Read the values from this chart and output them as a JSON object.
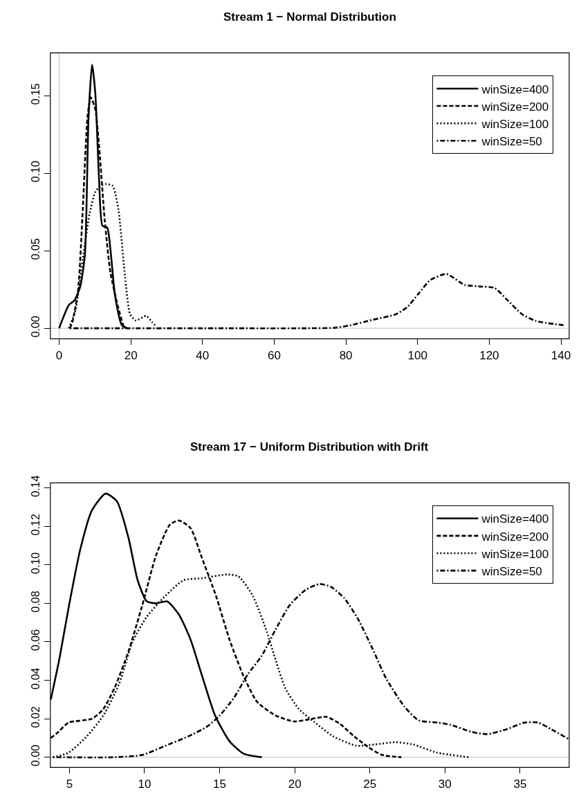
{
  "chart_data": [
    {
      "type": "line",
      "title": "Stream 1 − Normal Distribution",
      "xlim": [
        -2.45,
        142.3
      ],
      "xticks": [
        0,
        20,
        40,
        60,
        80,
        100,
        120,
        140
      ],
      "ylim": [
        -0.0068,
        0.1776
      ],
      "yticks": [
        {
          "value": 0,
          "label": "0.00"
        },
        {
          "value": 0.05,
          "label": "0.05"
        },
        {
          "value": 0.1,
          "label": "0.10"
        },
        {
          "value": 0.15,
          "label": "0.15"
        }
      ],
      "grid": false,
      "legend": "top right",
      "ref_lines": [
        {
          "axis": "y",
          "value": 0,
          "color": "#bebebe"
        },
        {
          "axis": "x",
          "value": 0,
          "color": "#bebebe"
        }
      ],
      "series": [
        {
          "name": "winSize=400",
          "color": "#000000",
          "line_style": "solid",
          "x": [
            0,
            2.7,
            4.3,
            5.9,
            7.2,
            8.2,
            9.2,
            10.1,
            11.1,
            12.1,
            13.4,
            14.3,
            15.6,
            17.5,
            19
          ],
          "values": [
            0,
            0.015,
            0.018,
            0.027,
            0.048,
            0.136,
            0.17,
            0.151,
            0.098,
            0.066,
            0.065,
            0.051,
            0.021,
            0.002,
            0
          ]
        },
        {
          "name": "winSize=200",
          "color": "#000000",
          "line_style": "dashed",
          "x": [
            3,
            3.7,
            5.3,
            6.6,
            7.9,
            8.8,
            10.1,
            11.4,
            12.7,
            14.3,
            16.3,
            17.9,
            18.5
          ],
          "values": [
            0,
            0.004,
            0.025,
            0.077,
            0.136,
            0.149,
            0.141,
            0.11,
            0.07,
            0.036,
            0.015,
            0.002,
            0
          ]
        },
        {
          "name": "winSize=100",
          "color": "#000000",
          "line_style": "dotted",
          "x": [
            2.7,
            4.6,
            6.6,
            8.5,
            10.1,
            11.7,
            13.0,
            14.9,
            16.5,
            18.4,
            19.8,
            21.4,
            24.3,
            25.9,
            27.2
          ],
          "values": [
            0,
            0.012,
            0.045,
            0.074,
            0.088,
            0.092,
            0.093,
            0.092,
            0.077,
            0.033,
            0.009,
            0.005,
            0.008,
            0.004,
            0.001
          ]
        },
        {
          "name": "winSize=50",
          "color": "#000000",
          "line_style": "dashdot",
          "x": [
            3,
            40,
            68.3,
            76.6,
            81.1,
            87.5,
            93.9,
            97.1,
            100.3,
            103.5,
            108,
            113.1,
            117,
            121.5,
            124.7,
            129.2,
            133,
            140.7
          ],
          "values": [
            0,
            0,
            0,
            0.0003,
            0.0018,
            0.0055,
            0.009,
            0.0136,
            0.0224,
            0.031,
            0.035,
            0.028,
            0.027,
            0.026,
            0.019,
            0.009,
            0.0047,
            0.002
          ]
        }
      ]
    },
    {
      "type": "line",
      "title": "Stream 17 − Uniform Distribution with Drift",
      "xlim": [
        3.73,
        38.27
      ],
      "xticks": [
        5,
        10,
        15,
        20,
        25,
        30,
        35
      ],
      "ylim": [
        -0.0053,
        0.1426
      ],
      "yticks": [
        {
          "value": 0,
          "label": "0.00"
        },
        {
          "value": 0.02,
          "label": "0.02"
        },
        {
          "value": 0.04,
          "label": "0.04"
        },
        {
          "value": 0.06,
          "label": "0.06"
        },
        {
          "value": 0.08,
          "label": "0.08"
        },
        {
          "value": 0.1,
          "label": "0.10"
        },
        {
          "value": 0.12,
          "label": "0.12"
        },
        {
          "value": 0.14,
          "label": "0.14"
        }
      ],
      "grid": false,
      "legend": "top right",
      "ref_lines": [
        {
          "axis": "y",
          "value": 0,
          "color": "#bebebe"
        }
      ],
      "series": [
        {
          "name": "winSize=400",
          "color": "#000000",
          "line_style": "solid",
          "x": [
            3.76,
            4.34,
            4.95,
            5.72,
            6.48,
            7.4,
            8.16,
            8.93,
            9.54,
            10.15,
            10.77,
            11.5,
            12.3,
            13.07,
            13.8,
            14.7,
            15.65,
            16.6,
            17.8
          ],
          "values": [
            0.03,
            0.0515,
            0.078,
            0.108,
            0.128,
            0.137,
            0.133,
            0.114,
            0.092,
            0.081,
            0.08,
            0.081,
            0.074,
            0.061,
            0.043,
            0.0216,
            0.0084,
            0.0018,
            0
          ]
        },
        {
          "name": "winSize=200",
          "color": "#000000",
          "line_style": "dashed",
          "x": [
            3.76,
            4.1,
            4.95,
            6.5,
            7.25,
            8.0,
            8.93,
            9.85,
            10.77,
            11.7,
            12.3,
            13.07,
            13.8,
            14.75,
            15.66,
            16.6,
            17.5,
            18.74,
            19.97,
            21.04,
            22.1,
            23.0,
            23.96,
            24.87,
            25.8,
            27.1
          ],
          "values": [
            0.01,
            0.012,
            0.018,
            0.02,
            0.025,
            0.036,
            0.055,
            0.079,
            0.105,
            0.121,
            0.123,
            0.119,
            0.104,
            0.084,
            0.061,
            0.042,
            0.0287,
            0.0216,
            0.0186,
            0.0198,
            0.021,
            0.0174,
            0.0108,
            0.0054,
            0.0012,
            0
          ]
        },
        {
          "name": "winSize=100",
          "color": "#000000",
          "line_style": "dotted",
          "x": [
            3.9,
            4.95,
            6.17,
            7.25,
            8.3,
            9.2,
            10.15,
            11.4,
            12.6,
            13.8,
            15.5,
            16.25,
            17.2,
            18.15,
            18.75,
            19.36,
            20.28,
            21.35,
            22.57,
            24.1,
            25.3,
            26.7,
            27.9,
            29.46,
            31.6
          ],
          "values": [
            0,
            0.0024,
            0.011,
            0.0216,
            0.038,
            0.06,
            0.073,
            0.084,
            0.092,
            0.093,
            0.095,
            0.094,
            0.084,
            0.065,
            0.05,
            0.036,
            0.025,
            0.018,
            0.0108,
            0.006,
            0.0066,
            0.0078,
            0.0066,
            0.0024,
            0
          ]
        },
        {
          "name": "winSize=50",
          "color": "#000000",
          "line_style": "dashdot",
          "x": [
            3.9,
            8.0,
            9.85,
            11.4,
            12.9,
            14.1,
            15.0,
            15.96,
            16.87,
            17.8,
            18.7,
            19.66,
            20.73,
            21.65,
            22.4,
            23.3,
            24.2,
            25.2,
            26.1,
            27.3,
            28.24,
            29.5,
            30.4,
            31.75,
            32.8,
            34.05,
            35.3,
            36.2,
            37.1,
            38.2
          ],
          "values": [
            0,
            0,
            0.0012,
            0.006,
            0.0108,
            0.0156,
            0.0216,
            0.031,
            0.043,
            0.0527,
            0.066,
            0.079,
            0.087,
            0.09,
            0.0886,
            0.0826,
            0.072,
            0.056,
            0.0407,
            0.0263,
            0.0192,
            0.018,
            0.0168,
            0.0132,
            0.012,
            0.0144,
            0.018,
            0.018,
            0.0144,
            0.0096
          ]
        }
      ]
    }
  ]
}
